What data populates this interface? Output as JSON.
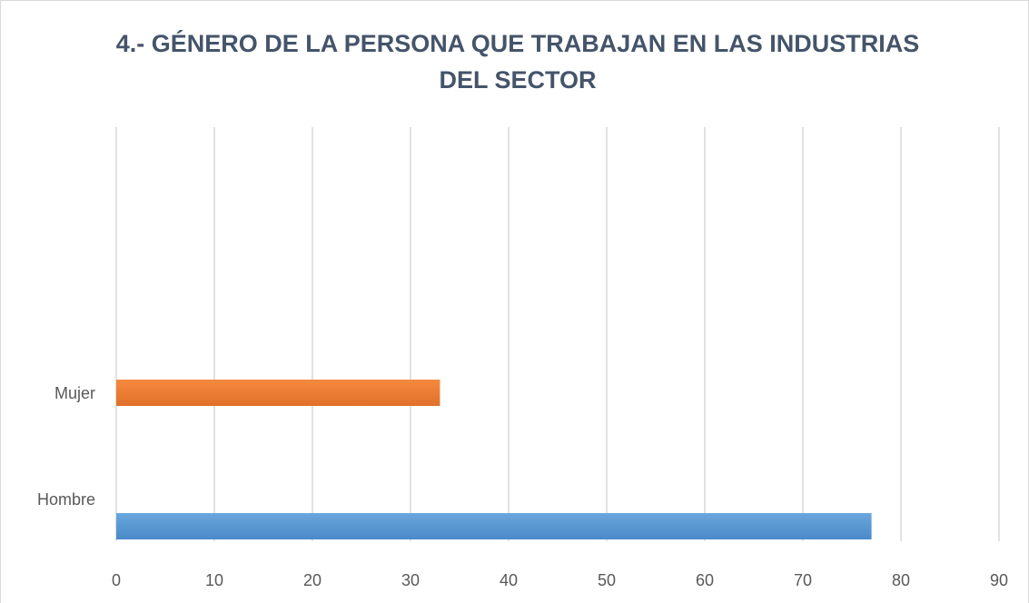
{
  "chart_data": {
    "type": "bar",
    "orientation": "horizontal",
    "title": [
      "4.- GÉNERO DE LA PERSONA QUE TRABAJAN EN LAS INDUSTRIAS",
      "DEL SECTOR"
    ],
    "categories": [
      "Hombre",
      "Mujer"
    ],
    "values": [
      77,
      33
    ],
    "colors": [
      "#5b9bd5",
      "#ed7d31"
    ],
    "xlim": [
      0,
      90
    ],
    "xticks": [
      0,
      10,
      20,
      30,
      40,
      50,
      60,
      70,
      80,
      90
    ],
    "grid": true
  }
}
